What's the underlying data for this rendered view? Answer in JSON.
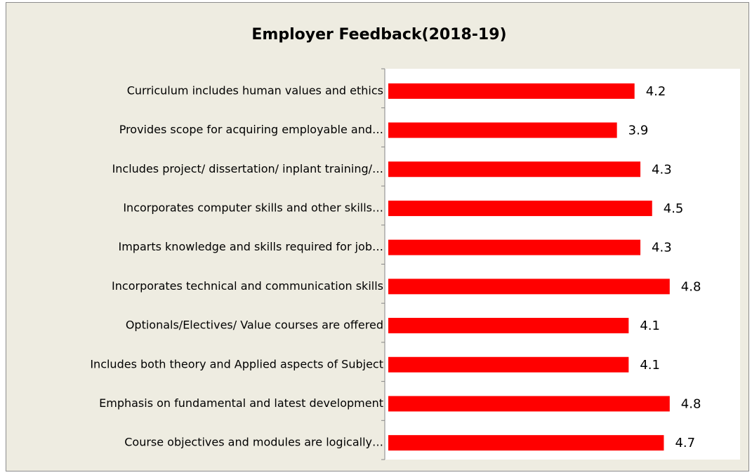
{
  "chart_data": {
    "type": "bar",
    "orientation": "horizontal",
    "title": "Employer Feedback(2018-19)",
    "categories": [
      "Curriculum includes human values and ethics",
      "Provides scope for acquiring employable and…",
      "Includes project/ dissertation/ inplant training/…",
      "Incorporates computer skills and other skills…",
      "Imparts knowledge and skills required for job…",
      "Incorporates technical and communication skills",
      "Optionals/Electives/ Value courses are offered",
      "Includes both theory and Applied aspects of Subject",
      "Emphasis on fundamental and latest development",
      "Course objectives and modules are logically…"
    ],
    "values": [
      4.2,
      3.9,
      4.3,
      4.5,
      4.3,
      4.8,
      4.1,
      4.1,
      4.8,
      4.7
    ],
    "color": "#ff0000",
    "xlim": [
      0,
      6
    ]
  }
}
